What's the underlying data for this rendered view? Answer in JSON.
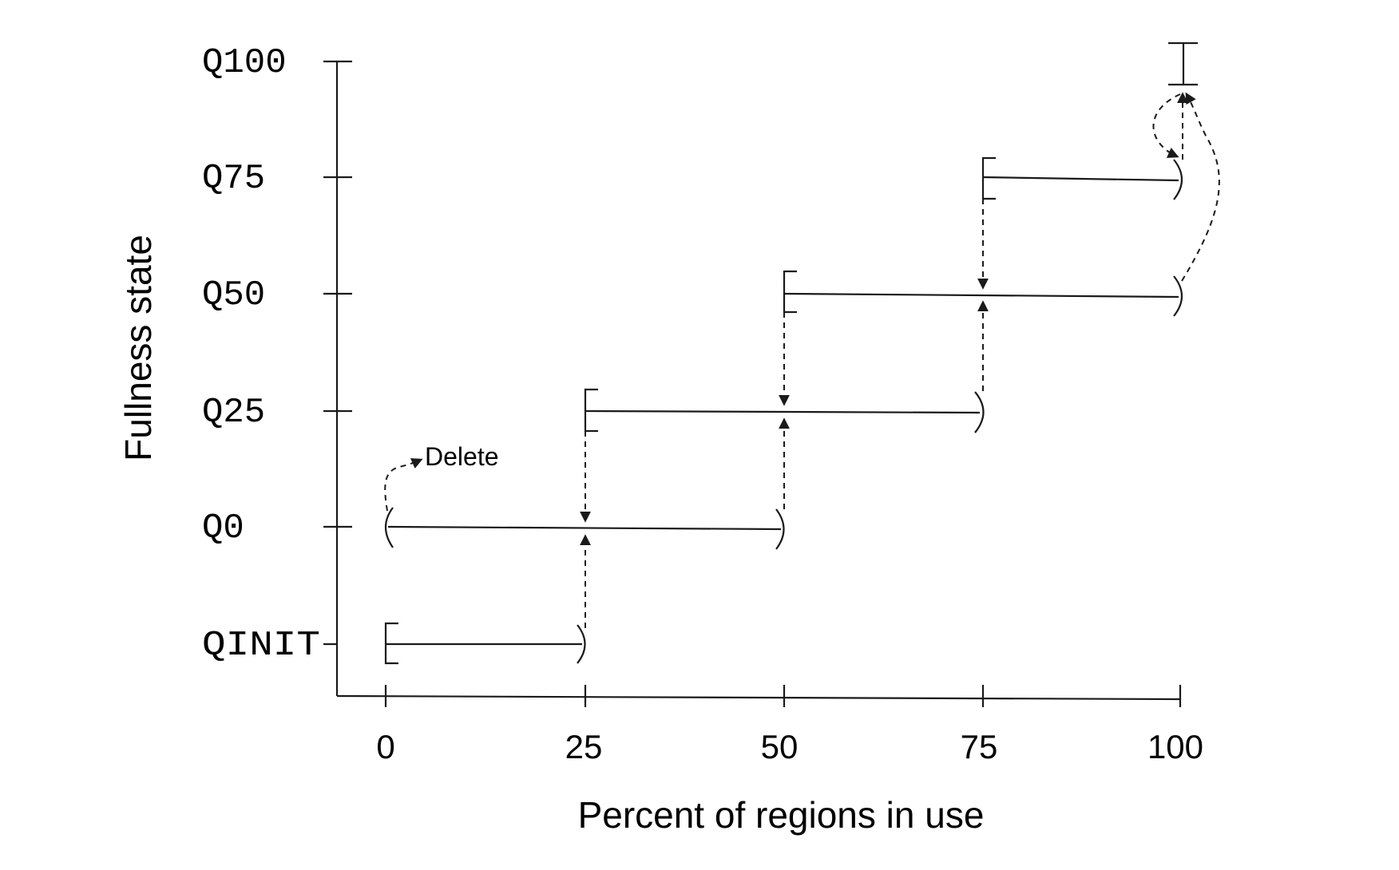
{
  "chart_data": {
    "type": "diagram",
    "xlabel": "Percent of regions in use",
    "ylabel": "Fullness state",
    "x_ticks": [
      "0",
      "25",
      "50",
      "75",
      "100"
    ],
    "states": [
      "QINIT",
      "Q0",
      "Q25",
      "Q50",
      "Q75",
      "Q100"
    ],
    "ranges": [
      {
        "state": "QINIT",
        "from": 0,
        "to": 25,
        "start": "closed",
        "end": "open"
      },
      {
        "state": "Q0",
        "from": 0,
        "to": 50,
        "start": "open",
        "end": "open"
      },
      {
        "state": "Q25",
        "from": 25,
        "to": 75,
        "start": "closed",
        "end": "open"
      },
      {
        "state": "Q50",
        "from": 50,
        "to": 100,
        "start": "closed",
        "end": "open"
      },
      {
        "state": "Q75",
        "from": 75,
        "to": 100,
        "start": "closed",
        "end": "open"
      },
      {
        "state": "Q100",
        "from": 100,
        "to": 100,
        "start": "closed",
        "end": "closed"
      }
    ],
    "transitions": [
      {
        "from": "QINIT",
        "to": "Q0",
        "at": 25
      },
      {
        "from": "Q0",
        "to": "Q25",
        "at": 50
      },
      {
        "from": "Q25",
        "to": "Q0",
        "at": 25
      },
      {
        "from": "Q25",
        "to": "Q50",
        "at": 75
      },
      {
        "from": "Q50",
        "to": "Q25",
        "at": 50
      },
      {
        "from": "Q50",
        "to": "Q100",
        "at": 100
      },
      {
        "from": "Q75",
        "to": "Q50",
        "at": 75
      },
      {
        "from": "Q75",
        "to": "Q100",
        "at": 100
      },
      {
        "from": "Q100",
        "to": "Q75",
        "at": 100
      }
    ],
    "annotation": "Delete"
  }
}
